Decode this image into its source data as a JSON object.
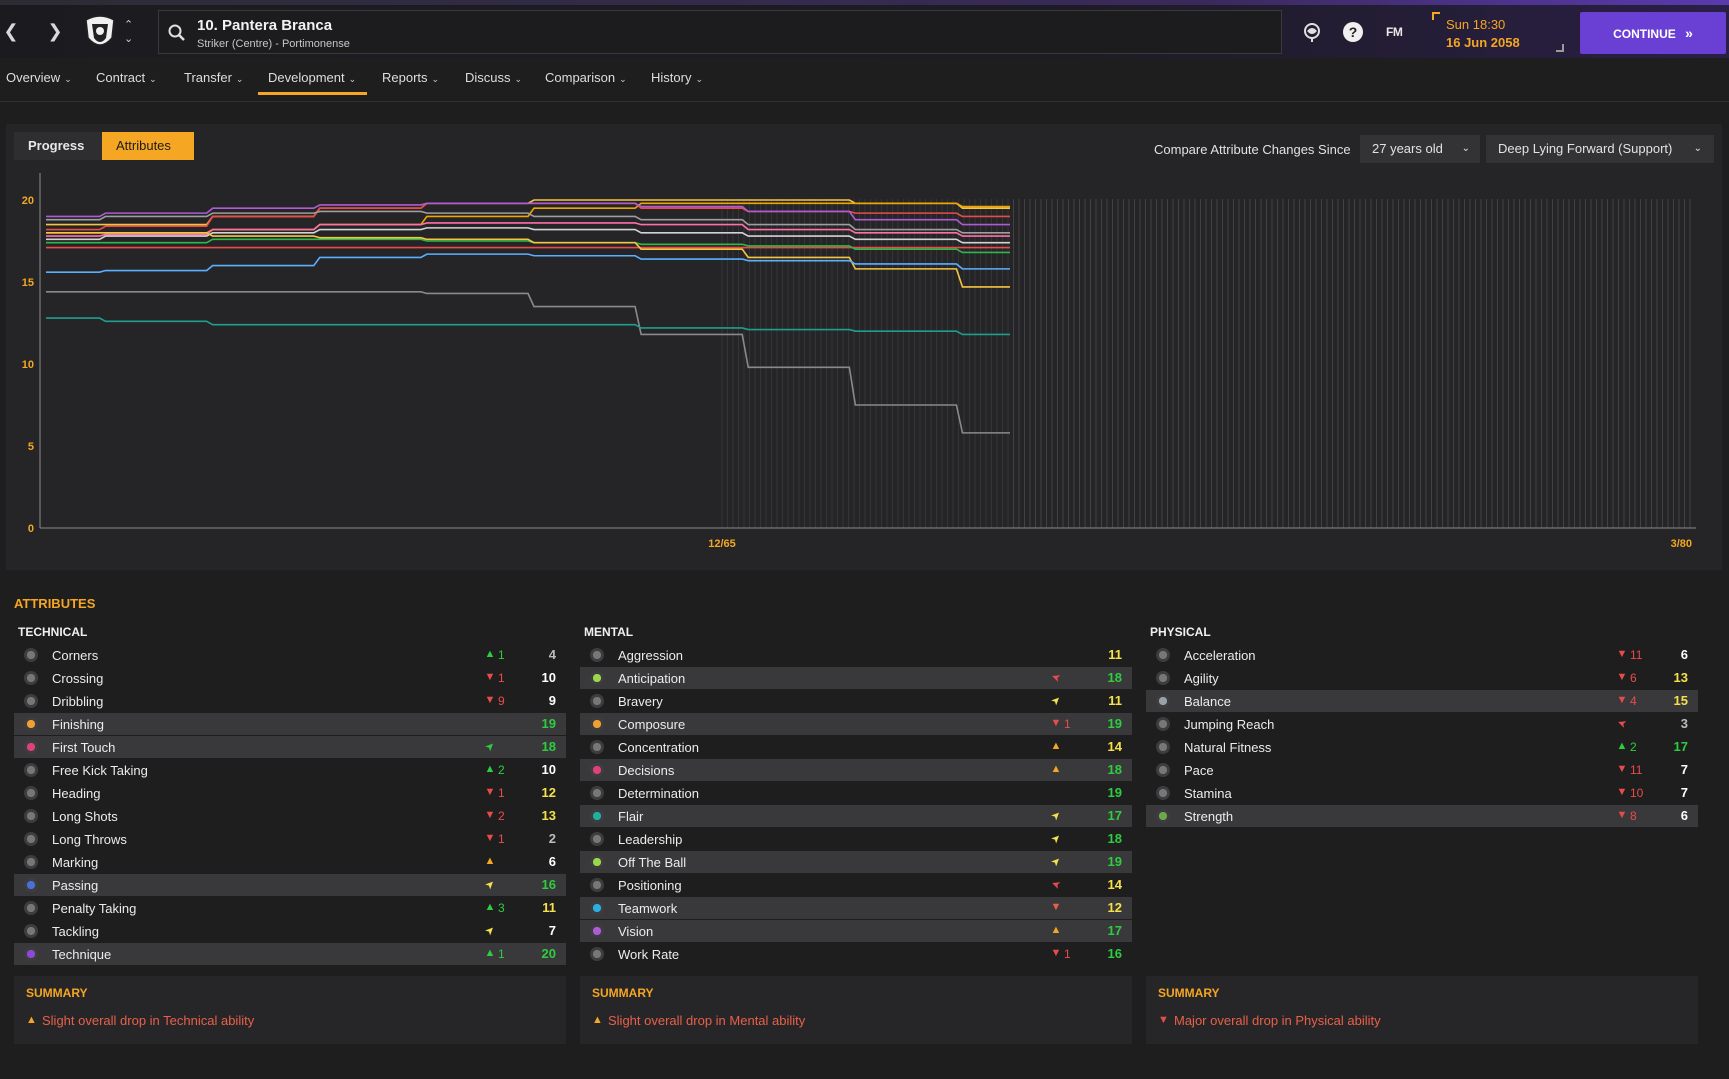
{
  "header": {
    "player_name": "10. Pantera Branca",
    "player_subtitle": "Striker (Centre) - Portimonense",
    "date_day": "Sun 18:30",
    "date_full": "16 Jun 2058",
    "fm_label": "FM",
    "continue_label": "CONTINUE"
  },
  "tabs": [
    {
      "label": "Overview"
    },
    {
      "label": "Contract"
    },
    {
      "label": "Transfer"
    },
    {
      "label": "Development"
    },
    {
      "label": "Reports"
    },
    {
      "label": "Discuss"
    },
    {
      "label": "Comparison"
    },
    {
      "label": "History"
    }
  ],
  "chart_panel": {
    "progress_label": "Progress",
    "attributes_label": "Attributes",
    "compare_label": "Compare Attribute Changes Since",
    "since_value": "27 years old",
    "role_value": "Deep Lying Forward (Support)"
  },
  "chart_data": {
    "type": "line",
    "ylim": [
      0,
      20
    ],
    "y_ticks": [
      "0",
      "5",
      "10",
      "15",
      "20"
    ],
    "x_labels": [
      "12/65",
      "3/80"
    ],
    "grid": false,
    "series": [
      {
        "color": "#f5c542",
        "values": [
          18.5,
          18.5,
          19.0,
          19.5,
          19.8,
          20.0,
          20.0,
          20.0,
          19.8,
          19.5
        ]
      },
      {
        "color": "#f0a500",
        "values": [
          18.0,
          18.0,
          18.2,
          18.5,
          19.0,
          19.5,
          19.8,
          19.8,
          19.8,
          19.6
        ]
      },
      {
        "color": "#e94b4b",
        "values": [
          18.2,
          18.4,
          19.0,
          19.5,
          19.8,
          19.8,
          19.5,
          19.3,
          19.2,
          19.0
        ]
      },
      {
        "color": "#b05bd6",
        "values": [
          19.0,
          19.2,
          19.5,
          19.7,
          19.8,
          19.8,
          19.6,
          19.3,
          18.8,
          18.5
        ]
      },
      {
        "color": "#9e9e9e",
        "values": [
          18.8,
          19.0,
          19.2,
          19.3,
          19.2,
          19.0,
          18.8,
          18.5,
          18.2,
          18.0
        ]
      },
      {
        "color": "#ff6fa8",
        "values": [
          17.8,
          17.9,
          18.2,
          18.5,
          18.6,
          18.6,
          18.5,
          18.2,
          18.0,
          17.8
        ]
      },
      {
        "color": "#d3d3d3",
        "values": [
          17.6,
          17.8,
          18.0,
          18.2,
          18.3,
          18.2,
          18.0,
          17.8,
          17.6,
          17.4
        ]
      },
      {
        "color": "#e94b4b",
        "values": [
          17.1,
          17.1,
          17.1,
          17.1,
          17.1,
          17.1,
          17.1,
          17.1,
          17.1,
          17.1
        ]
      },
      {
        "color": "#2fb84a",
        "values": [
          17.4,
          17.4,
          17.6,
          17.6,
          17.5,
          17.4,
          17.3,
          17.2,
          17.0,
          16.8
        ]
      },
      {
        "color": "#f5c542",
        "values": [
          18.0,
          18.0,
          17.8,
          17.7,
          17.6,
          17.4,
          17.0,
          16.5,
          15.8,
          14.7
        ]
      },
      {
        "color": "#5ab0ff",
        "values": [
          15.6,
          15.7,
          16.0,
          16.5,
          16.7,
          16.6,
          16.4,
          16.3,
          16.1,
          15.8
        ]
      },
      {
        "color": "#8a8a8a",
        "values": [
          14.4,
          14.4,
          14.4,
          14.4,
          14.3,
          13.5,
          11.8,
          9.8,
          7.5,
          5.8
        ]
      },
      {
        "color": "#1f9e8c",
        "values": [
          12.8,
          12.6,
          12.4,
          12.4,
          12.4,
          12.4,
          12.2,
          12.1,
          12.0,
          11.8
        ]
      }
    ]
  },
  "attributes_title": "ATTRIBUTES",
  "technical": {
    "title": "TECHNICAL",
    "rows": [
      {
        "name": "Corners",
        "trend": "up",
        "change": "1",
        "value": "4",
        "icon": "#777",
        "hl": false,
        "vcolor": "#bdbdbd"
      },
      {
        "name": "Crossing",
        "trend": "down",
        "change": "1",
        "value": "10",
        "icon": "#777",
        "hl": false,
        "vcolor": "#ffffff"
      },
      {
        "name": "Dribbling",
        "trend": "down",
        "change": "9",
        "value": "9",
        "icon": "#777",
        "hl": false,
        "vcolor": "#ffffff"
      },
      {
        "name": "Finishing",
        "trend": "",
        "change": "",
        "value": "19",
        "icon": "#f0a030",
        "hl": true,
        "vcolor": "#2ecc40"
      },
      {
        "name": "First Touch",
        "trend": "slight-up",
        "change": "",
        "value": "18",
        "icon": "#e0407a",
        "hl": true,
        "vcolor": "#2ecc40"
      },
      {
        "name": "Free Kick Taking",
        "trend": "up",
        "change": "2",
        "value": "10",
        "icon": "#777",
        "hl": false,
        "vcolor": "#ffffff"
      },
      {
        "name": "Heading",
        "trend": "down",
        "change": "1",
        "value": "12",
        "icon": "#777",
        "hl": false,
        "vcolor": "#f5e14a"
      },
      {
        "name": "Long Shots",
        "trend": "down",
        "change": "2",
        "value": "13",
        "icon": "#777",
        "hl": false,
        "vcolor": "#f5e14a"
      },
      {
        "name": "Long Throws",
        "trend": "down",
        "change": "1",
        "value": "2",
        "icon": "#777",
        "hl": false,
        "vcolor": "#bdbdbd"
      },
      {
        "name": "Marking",
        "trend": "slight-down-orange",
        "change": "",
        "value": "6",
        "icon": "#777",
        "hl": false,
        "vcolor": "#ffffff"
      },
      {
        "name": "Passing",
        "trend": "slight-up-yellow",
        "change": "",
        "value": "16",
        "icon": "#4a6fd8",
        "hl": true,
        "vcolor": "#2ecc40"
      },
      {
        "name": "Penalty Taking",
        "trend": "up",
        "change": "3",
        "value": "11",
        "icon": "#777",
        "hl": false,
        "vcolor": "#f5e14a"
      },
      {
        "name": "Tackling",
        "trend": "slight-up-yellow",
        "change": "",
        "value": "7",
        "icon": "#777",
        "hl": false,
        "vcolor": "#ffffff"
      },
      {
        "name": "Technique",
        "trend": "up",
        "change": "1",
        "value": "20",
        "icon": "#8a4ad8",
        "hl": true,
        "vcolor": "#2ecc40"
      }
    ],
    "summary_title": "SUMMARY",
    "summary_text": "Slight overall drop in Technical ability"
  },
  "mental": {
    "title": "MENTAL",
    "rows": [
      {
        "name": "Aggression",
        "trend": "",
        "change": "",
        "value": "11",
        "icon": "#777",
        "hl": false,
        "vcolor": "#f5e14a"
      },
      {
        "name": "Anticipation",
        "trend": "slight-down",
        "change": "",
        "value": "18",
        "icon": "#9ad84a",
        "hl": true,
        "vcolor": "#2ecc40"
      },
      {
        "name": "Bravery",
        "trend": "slight-up-yellow",
        "change": "",
        "value": "11",
        "icon": "#777",
        "hl": false,
        "vcolor": "#f5e14a"
      },
      {
        "name": "Composure",
        "trend": "down",
        "change": "1",
        "value": "19",
        "icon": "#f0a030",
        "hl": true,
        "vcolor": "#2ecc40"
      },
      {
        "name": "Concentration",
        "trend": "slight-down-orange",
        "change": "",
        "value": "14",
        "icon": "#777",
        "hl": false,
        "vcolor": "#f5e14a"
      },
      {
        "name": "Decisions",
        "trend": "slight-down-orange",
        "change": "",
        "value": "18",
        "icon": "#e0407a",
        "hl": true,
        "vcolor": "#2ecc40"
      },
      {
        "name": "Determination",
        "trend": "",
        "change": "",
        "value": "19",
        "icon": "#777",
        "hl": false,
        "vcolor": "#2ecc40"
      },
      {
        "name": "Flair",
        "trend": "slight-up-yellow",
        "change": "",
        "value": "17",
        "icon": "#1fb0a0",
        "hl": true,
        "vcolor": "#2ecc40"
      },
      {
        "name": "Leadership",
        "trend": "slight-up-yellow",
        "change": "",
        "value": "18",
        "icon": "#777",
        "hl": false,
        "vcolor": "#2ecc40"
      },
      {
        "name": "Off The Ball",
        "trend": "slight-up-yellow",
        "change": "",
        "value": "19",
        "icon": "#9ad84a",
        "hl": true,
        "vcolor": "#2ecc40"
      },
      {
        "name": "Positioning",
        "trend": "slight-down",
        "change": "",
        "value": "14",
        "icon": "#777",
        "hl": false,
        "vcolor": "#f5e14a"
      },
      {
        "name": "Teamwork",
        "trend": "down-small",
        "change": "",
        "value": "12",
        "icon": "#2ab0e0",
        "hl": true,
        "vcolor": "#f5e14a"
      },
      {
        "name": "Vision",
        "trend": "slight-down-orange",
        "change": "",
        "value": "17",
        "icon": "#b05bd6",
        "hl": true,
        "vcolor": "#2ecc40"
      },
      {
        "name": "Work Rate",
        "trend": "down",
        "change": "1",
        "value": "16",
        "icon": "#777",
        "hl": false,
        "vcolor": "#2ecc40"
      }
    ],
    "summary_title": "SUMMARY",
    "summary_text": "Slight overall drop in Mental ability"
  },
  "physical": {
    "title": "PHYSICAL",
    "rows": [
      {
        "name": "Acceleration",
        "trend": "down",
        "change": "11",
        "value": "6",
        "icon": "#777",
        "hl": false,
        "vcolor": "#ffffff"
      },
      {
        "name": "Agility",
        "trend": "down",
        "change": "6",
        "value": "13",
        "icon": "#777",
        "hl": false,
        "vcolor": "#f5e14a"
      },
      {
        "name": "Balance",
        "trend": "down",
        "change": "4",
        "value": "15",
        "icon": "#9aa0a8",
        "hl": true,
        "vcolor": "#f5e14a"
      },
      {
        "name": "Jumping Reach",
        "trend": "slight-down",
        "change": "",
        "value": "3",
        "icon": "#777",
        "hl": false,
        "vcolor": "#bdbdbd"
      },
      {
        "name": "Natural Fitness",
        "trend": "up",
        "change": "2",
        "value": "17",
        "icon": "#777",
        "hl": false,
        "vcolor": "#2ecc40"
      },
      {
        "name": "Pace",
        "trend": "down",
        "change": "11",
        "value": "7",
        "icon": "#777",
        "hl": false,
        "vcolor": "#ffffff"
      },
      {
        "name": "Stamina",
        "trend": "down",
        "change": "10",
        "value": "7",
        "icon": "#777",
        "hl": false,
        "vcolor": "#ffffff"
      },
      {
        "name": "Strength",
        "trend": "down",
        "change": "8",
        "value": "6",
        "icon": "#6aa84a",
        "hl": true,
        "vcolor": "#ffffff"
      }
    ],
    "summary_title": "SUMMARY",
    "summary_text": "Major overall drop in Physical ability"
  }
}
